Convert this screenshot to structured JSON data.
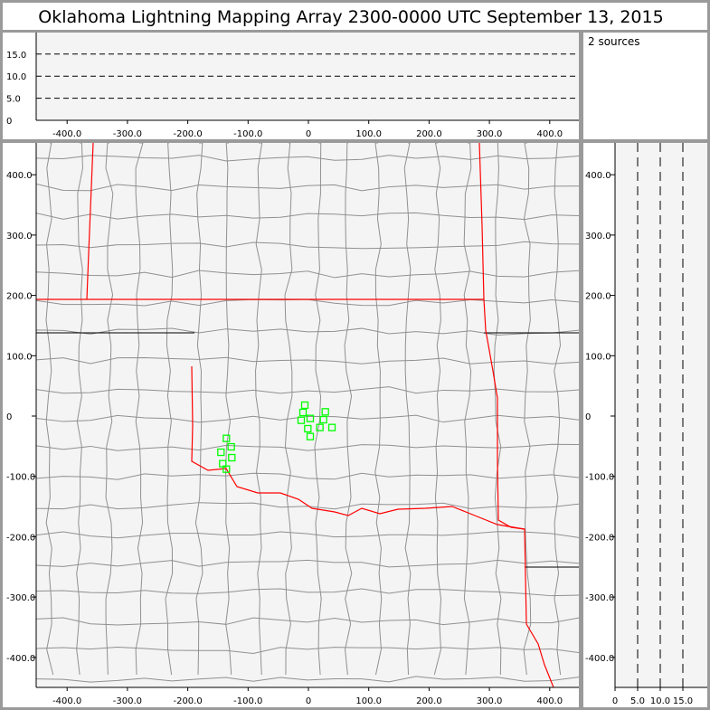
{
  "title": "Oklahoma Lightning Mapping Array   2300-0000 UTC  September 13, 2015",
  "source_count_label": "2 sources",
  "colors": {
    "points": "#00ff00",
    "state_border": "#ff0000",
    "county": "#909090",
    "plot_bg": "#f4f4f4"
  },
  "chart_data": [
    {
      "type": "scatter",
      "panel": "altitude-vs-east-west",
      "xlim": [
        -450,
        450
      ],
      "ylim": [
        0,
        20
      ],
      "xticks": [
        "-400.0",
        "-300.0",
        "-200.0",
        "-100.0",
        "0",
        "100.0",
        "200.0",
        "300.0",
        "400.0"
      ],
      "xtick_values": [
        -400,
        -300,
        -200,
        -100,
        0,
        100,
        200,
        300,
        400
      ],
      "yticks": [
        "0",
        "5.0",
        "10.0",
        "15.0"
      ],
      "ytick_values": [
        0,
        5,
        10,
        15
      ],
      "dashed_reference_lines": [
        5,
        10,
        15
      ],
      "points": []
    },
    {
      "type": "scatter",
      "panel": "plan-view-map",
      "xlim": [
        -450,
        450
      ],
      "ylim": [
        -450,
        450
      ],
      "xticks": [
        "-400.0",
        "-300.0",
        "-200.0",
        "-100.0",
        "0",
        "100.0",
        "200.0",
        "300.0",
        "400.0"
      ],
      "xtick_values": [
        -400,
        -300,
        -200,
        -100,
        0,
        100,
        200,
        300,
        400
      ],
      "yticks": [
        "400.0",
        "300.0",
        "200.0",
        "100.0",
        "0",
        "-100.0",
        "-200.0",
        "-300.0",
        "-400.0"
      ],
      "ytick_values": [
        400,
        300,
        200,
        100,
        0,
        -100,
        -200,
        -300,
        -400
      ],
      "marker": "hollow-square",
      "points": [
        {
          "x": -6,
          "y": 18
        },
        {
          "x": -9,
          "y": 6
        },
        {
          "x": -12,
          "y": -7
        },
        {
          "x": 3,
          "y": -4
        },
        {
          "x": -1,
          "y": -21
        },
        {
          "x": 3,
          "y": -34
        },
        {
          "x": 28,
          "y": 7
        },
        {
          "x": 25,
          "y": -6
        },
        {
          "x": 19,
          "y": -19
        },
        {
          "x": 39,
          "y": -19
        },
        {
          "x": -136,
          "y": -37
        },
        {
          "x": -128,
          "y": -51
        },
        {
          "x": -145,
          "y": -60
        },
        {
          "x": -127,
          "y": -69
        },
        {
          "x": -142,
          "y": -79
        },
        {
          "x": -136,
          "y": -88
        }
      ]
    },
    {
      "type": "scatter",
      "panel": "north-south-vs-altitude",
      "xlim": [
        0,
        20
      ],
      "ylim": [
        -450,
        450
      ],
      "xticks": [
        "0",
        "5.0",
        "10.0",
        "15.0"
      ],
      "xtick_values": [
        0,
        5,
        10,
        15
      ],
      "yticks": [
        "400.0",
        "300.0",
        "200.0",
        "100.0",
        "0",
        "-100.0",
        "-200.0",
        "-300.0",
        "-400.0"
      ],
      "ytick_values": [
        400,
        300,
        200,
        100,
        0,
        -100,
        -200,
        -300,
        -400
      ],
      "dashed_reference_lines": [
        5,
        10,
        15
      ],
      "points": []
    }
  ]
}
